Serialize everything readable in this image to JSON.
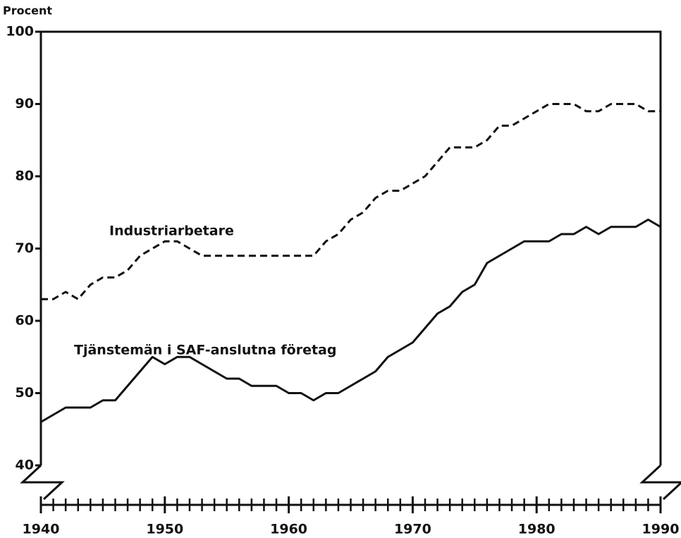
{
  "chart_data": {
    "type": "line",
    "y_label": "Procent",
    "x": [
      1940,
      1941,
      1942,
      1943,
      1944,
      1945,
      1946,
      1947,
      1948,
      1949,
      1950,
      1951,
      1952,
      1953,
      1954,
      1955,
      1956,
      1957,
      1958,
      1959,
      1960,
      1961,
      1962,
      1963,
      1964,
      1965,
      1966,
      1967,
      1968,
      1969,
      1970,
      1971,
      1972,
      1973,
      1974,
      1975,
      1976,
      1977,
      1978,
      1979,
      1980,
      1981,
      1982,
      1983,
      1984,
      1985,
      1986,
      1987,
      1988,
      1989,
      1990
    ],
    "series": [
      {
        "name": "Industriarbetare",
        "color": "#111111",
        "dash": true,
        "values": [
          63,
          63,
          64,
          63,
          65,
          66,
          66,
          67,
          69,
          70,
          71,
          71,
          70,
          69,
          69,
          69,
          69,
          69,
          69,
          69,
          69,
          69,
          69,
          71,
          72,
          74,
          75,
          77,
          78,
          78,
          79,
          80,
          82,
          84,
          84,
          84,
          85,
          87,
          87,
          88,
          89,
          90,
          90,
          90,
          89,
          89,
          90,
          90,
          90,
          89,
          89
        ]
      },
      {
        "name": "Tjänstemän i SAF-anslutna företag",
        "color": "#111111",
        "dash": false,
        "values": [
          46,
          47,
          48,
          48,
          48,
          49,
          49,
          51,
          53,
          55,
          54,
          55,
          55,
          54,
          53,
          52,
          52,
          51,
          51,
          51,
          50,
          50,
          49,
          50,
          50,
          51,
          52,
          53,
          55,
          56,
          57,
          59,
          61,
          62,
          64,
          65,
          68,
          69,
          70,
          71,
          71,
          71,
          72,
          72,
          73,
          72,
          73,
          73,
          73,
          74,
          73
        ]
      }
    ],
    "xlim": [
      1940,
      1990
    ],
    "xticks": [
      1940,
      1950,
      1960,
      1970,
      1980,
      1990
    ],
    "ylim": [
      40,
      100
    ],
    "yticks": [
      40,
      50,
      60,
      70,
      80,
      90,
      100
    ]
  }
}
